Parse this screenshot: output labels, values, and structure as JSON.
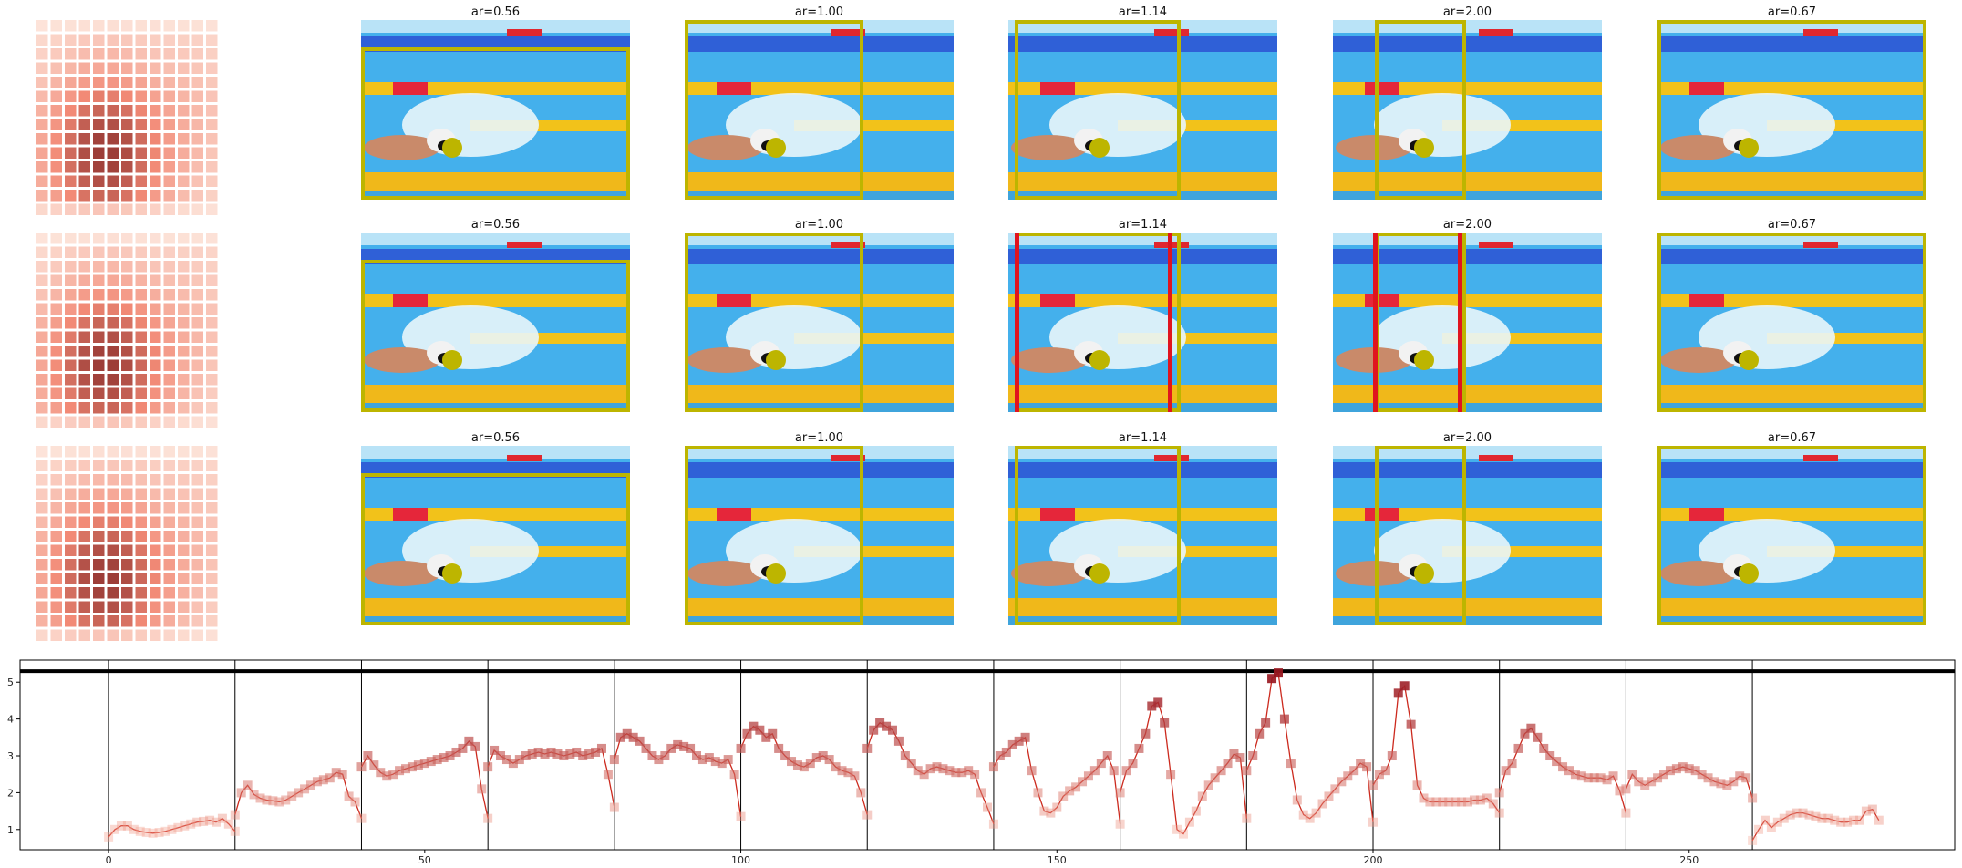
{
  "panels": {
    "titles": [
      "ar=0.56",
      "ar=1.00",
      "ar=1.14",
      "ar=2.00",
      "ar=0.67"
    ],
    "rows": [
      {
        "row": 1,
        "red_markers_on": []
      },
      {
        "row": 2,
        "red_markers_on": [
          "ar=1.14",
          "ar=2.00"
        ]
      },
      {
        "row": 3,
        "red_markers_on": []
      }
    ],
    "colors": {
      "crop_box": "#bdb500",
      "red_marker": "#e0141e",
      "heat_dark": "#7a1e1e",
      "heat_light": "#fde6dc",
      "pool_blue": "#44b0ec",
      "lane_yellow": "#f2c21a"
    }
  },
  "chart_data": {
    "type": "line",
    "title": "",
    "xlabel": "",
    "ylabel": "",
    "xlim": [
      -14,
      292
    ],
    "ylim": [
      0.45,
      5.6
    ],
    "xticks": [
      0,
      50,
      100,
      150,
      200,
      250
    ],
    "yticks": [
      1,
      2,
      3,
      4,
      5
    ],
    "threshold": 5.3,
    "segment_boundaries": [
      0,
      20,
      40,
      60,
      80,
      100,
      120,
      140,
      160,
      180,
      200,
      220,
      240,
      260
    ],
    "line_color": "#cc2a1e",
    "series": [
      {
        "x0": 0,
        "values": [
          0.8,
          1.0,
          1.1,
          1.1,
          1.0,
          0.95,
          0.92,
          0.9,
          0.92,
          0.95,
          1.0,
          1.05,
          1.1,
          1.15,
          1.2,
          1.22,
          1.25,
          1.2,
          1.3,
          1.15,
          0.95
        ]
      },
      {
        "x0": 20,
        "values": [
          1.4,
          2.0,
          2.2,
          1.95,
          1.85,
          1.8,
          1.78,
          1.75,
          1.8,
          1.9,
          2.0,
          2.1,
          2.2,
          2.3,
          2.35,
          2.4,
          2.55,
          2.5,
          1.9,
          1.75,
          1.3
        ]
      },
      {
        "x0": 40,
        "values": [
          2.7,
          3.0,
          2.75,
          2.55,
          2.45,
          2.5,
          2.6,
          2.65,
          2.7,
          2.75,
          2.8,
          2.85,
          2.9,
          2.95,
          3.0,
          3.1,
          3.2,
          3.4,
          3.25,
          2.1,
          1.3
        ]
      },
      {
        "x0": 60,
        "values": [
          2.7,
          3.15,
          3.0,
          2.9,
          2.8,
          2.9,
          3.0,
          3.05,
          3.1,
          3.05,
          3.1,
          3.05,
          3.0,
          3.05,
          3.1,
          3.0,
          3.05,
          3.1,
          3.2,
          2.5,
          1.6
        ]
      },
      {
        "x0": 80,
        "values": [
          2.9,
          3.5,
          3.6,
          3.5,
          3.4,
          3.2,
          3.0,
          2.9,
          3.0,
          3.2,
          3.3,
          3.25,
          3.2,
          3.0,
          2.9,
          2.95,
          2.85,
          2.8,
          2.9,
          2.5,
          1.35
        ]
      },
      {
        "x0": 100,
        "values": [
          3.2,
          3.6,
          3.8,
          3.7,
          3.5,
          3.6,
          3.2,
          3.0,
          2.85,
          2.75,
          2.7,
          2.8,
          2.95,
          3.0,
          2.9,
          2.7,
          2.6,
          2.55,
          2.45,
          2.0,
          1.4
        ]
      },
      {
        "x0": 120,
        "values": [
          3.2,
          3.7,
          3.9,
          3.8,
          3.7,
          3.4,
          3.0,
          2.8,
          2.6,
          2.5,
          2.65,
          2.7,
          2.65,
          2.6,
          2.55,
          2.55,
          2.6,
          2.5,
          2.0,
          1.6,
          1.15
        ]
      },
      {
        "x0": 140,
        "values": [
          2.7,
          3.0,
          3.1,
          3.3,
          3.4,
          3.5,
          2.6,
          2.0,
          1.5,
          1.45,
          1.6,
          1.9,
          2.05,
          2.15,
          2.3,
          2.45,
          2.6,
          2.8,
          3.0,
          2.6,
          1.15
        ]
      },
      {
        "x0": 160,
        "values": [
          2.0,
          2.6,
          2.8,
          3.2,
          3.6,
          4.35,
          4.45,
          3.9,
          2.5,
          1.0,
          0.88,
          1.2,
          1.5,
          1.9,
          2.2,
          2.4,
          2.6,
          2.8,
          3.05,
          2.95,
          1.3
        ]
      },
      {
        "x0": 180,
        "values": [
          2.6,
          3.0,
          3.6,
          3.9,
          5.1,
          5.25,
          4.0,
          2.8,
          1.8,
          1.4,
          1.3,
          1.45,
          1.7,
          1.9,
          2.1,
          2.3,
          2.45,
          2.6,
          2.8,
          2.7,
          1.2
        ]
      },
      {
        "x0": 200,
        "values": [
          2.2,
          2.5,
          2.6,
          3.0,
          4.7,
          4.9,
          3.85,
          2.2,
          1.85,
          1.75,
          1.75,
          1.75,
          1.75,
          1.75,
          1.75,
          1.75,
          1.8,
          1.8,
          1.85,
          1.7,
          1.45
        ]
      },
      {
        "x0": 220,
        "values": [
          2.0,
          2.6,
          2.8,
          3.2,
          3.6,
          3.75,
          3.5,
          3.2,
          3.0,
          2.85,
          2.7,
          2.6,
          2.5,
          2.45,
          2.4,
          2.4,
          2.4,
          2.35,
          2.45,
          2.05,
          1.45
        ]
      },
      {
        "x0": 240,
        "values": [
          2.1,
          2.5,
          2.3,
          2.2,
          2.3,
          2.4,
          2.5,
          2.6,
          2.65,
          2.7,
          2.65,
          2.6,
          2.5,
          2.4,
          2.3,
          2.25,
          2.2,
          2.3,
          2.45,
          2.4,
          1.85
        ]
      },
      {
        "x0": 260,
        "values": [
          0.7,
          1.0,
          1.25,
          1.05,
          1.2,
          1.3,
          1.4,
          1.45,
          1.45,
          1.4,
          1.35,
          1.3,
          1.3,
          1.25,
          1.2,
          1.2,
          1.25,
          1.25,
          1.5,
          1.55,
          1.25
        ]
      }
    ]
  }
}
